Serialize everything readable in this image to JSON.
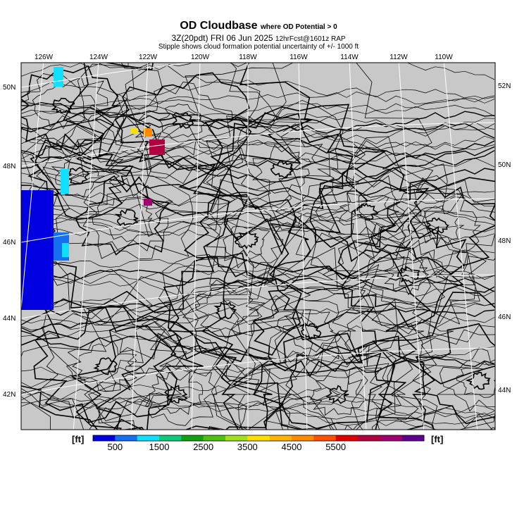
{
  "header": {
    "title": "OD Cloudbase",
    "title_suffix": "where OD Potential > 0",
    "subtitle": "3Z(20pdt) FRI 06 Jun 2025",
    "subtitle_suffix": "12hrFcst@1601z RAP",
    "note": "Stipple shows cloud formation potential uncertainty of +/- 1000 ft"
  },
  "lon_labels_top": [
    "126W",
    "124W",
    "122W",
    "120W",
    "118W",
    "116W",
    "114W",
    "112W",
    "110W"
  ],
  "lat_labels_left": [
    "50N",
    "48N",
    "46N",
    "44N",
    "42N"
  ],
  "lat_labels_right": [
    "52N",
    "50N",
    "48N",
    "46N",
    "44N"
  ],
  "colorbar": {
    "unit_left": "[ft]",
    "unit_right": "[ft]",
    "colors": [
      "#0000e0",
      "#1470f0",
      "#10e0ff",
      "#10c87c",
      "#10a010",
      "#50c010",
      "#a0e020",
      "#ffe000",
      "#ffb400",
      "#ff8c00",
      "#ff5000",
      "#e00000",
      "#b00040",
      "#a00070",
      "#600090"
    ],
    "labels": [
      "500",
      "1500",
      "2500",
      "3500",
      "4500",
      "5500"
    ]
  },
  "colors": {
    "land": "#c8c8c8",
    "sea": "#c8c8c8",
    "grid": "#ffffff",
    "contour": "#000000"
  }
}
